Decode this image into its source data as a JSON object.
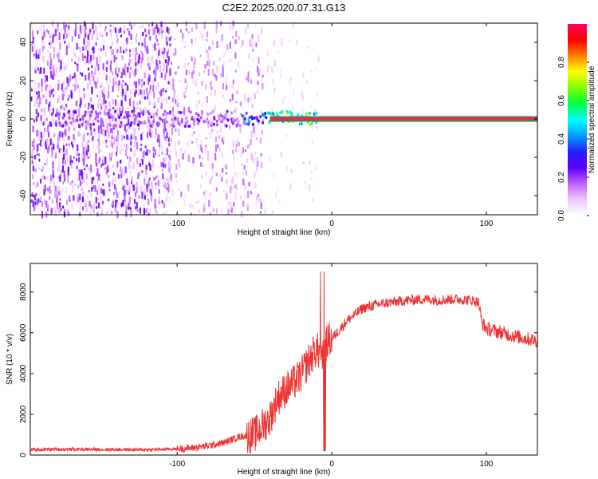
{
  "title": "C2E2.2025.020.07.31.G13",
  "colors": {
    "snr_line": "#ee3333",
    "background": "#ffffff",
    "frame": "#000000"
  },
  "chart_data": [
    {
      "type": "heatmap",
      "xlabel": "Height of straight line (km)",
      "ylabel": "Frequency (Hz)",
      "xlim": [
        -195,
        133
      ],
      "ylim": [
        -50,
        50
      ],
      "xticks": [
        {
          "value": -100,
          "label": "-100"
        },
        {
          "value": 0,
          "label": "0"
        },
        {
          "value": 100,
          "label": "100"
        }
      ],
      "yticks": [
        {
          "value": -40,
          "label": "-40"
        },
        {
          "value": -20,
          "label": "-20"
        },
        {
          "value": 0,
          "label": "0"
        },
        {
          "value": 20,
          "label": "20"
        },
        {
          "value": 40,
          "label": "40"
        }
      ],
      "colorbar": {
        "label": "Normalized spectral amplitude",
        "range": [
          0,
          1
        ],
        "ticks": [
          {
            "value": 0.0,
            "label": "0.0"
          },
          {
            "value": 0.2,
            "label": "0.2"
          },
          {
            "value": 0.4,
            "label": "0.4"
          },
          {
            "value": 0.6,
            "label": "0.6"
          },
          {
            "value": 0.8,
            "label": "0.8"
          }
        ],
        "colormap": [
          "#ffffff",
          "#f0c8ff",
          "#c060ff",
          "#6000ff",
          "#2020ff",
          "#00a0ff",
          "#00ffff",
          "#00ff40",
          "#80ff00",
          "#ffff00",
          "#ff8000",
          "#ff0000",
          "#ff0060"
        ]
      },
      "features": {
        "noise_region_x": [
          -195,
          -50
        ],
        "sparse_region_x": [
          -105,
          -45
        ],
        "carrier_start_x": -40,
        "carrier_frequency": 0,
        "carrier_amplitude": 0.95
      }
    },
    {
      "type": "line",
      "xlabel": "Height of straight line (km)",
      "ylabel": "SNR (10 * v/v)",
      "xlim": [
        -195,
        133
      ],
      "ylim": [
        0,
        9400
      ],
      "xticks": [
        {
          "value": -100,
          "label": "-100"
        },
        {
          "value": 0,
          "label": "0"
        },
        {
          "value": 100,
          "label": "100"
        }
      ],
      "yticks": [
        {
          "value": 0,
          "label": "0"
        },
        {
          "value": 2000,
          "label": "2000"
        },
        {
          "value": 4000,
          "label": "4000"
        },
        {
          "value": 6000,
          "label": "6000"
        },
        {
          "value": 8000,
          "label": "8000"
        }
      ],
      "series": [
        {
          "x": [
            -195,
            -180,
            -160,
            -140,
            -120,
            -100,
            -90,
            -80,
            -70,
            -60,
            -50,
            -40,
            -35,
            -30,
            -25,
            -20,
            -15,
            -10,
            -6,
            -3,
            0,
            10,
            20,
            30,
            40,
            50,
            60,
            70,
            80,
            90,
            95,
            97,
            100,
            110,
            120,
            133
          ],
          "y": [
            260,
            280,
            280,
            270,
            260,
            300,
            350,
            450,
            600,
            900,
            1000,
            1800,
            2800,
            3200,
            3500,
            3900,
            4600,
            5200,
            4800,
            5600,
            5700,
            6600,
            7200,
            7400,
            7500,
            7600,
            7650,
            7600,
            7650,
            7600,
            7500,
            6500,
            6200,
            6000,
            5800,
            5600
          ]
        }
      ]
    }
  ]
}
